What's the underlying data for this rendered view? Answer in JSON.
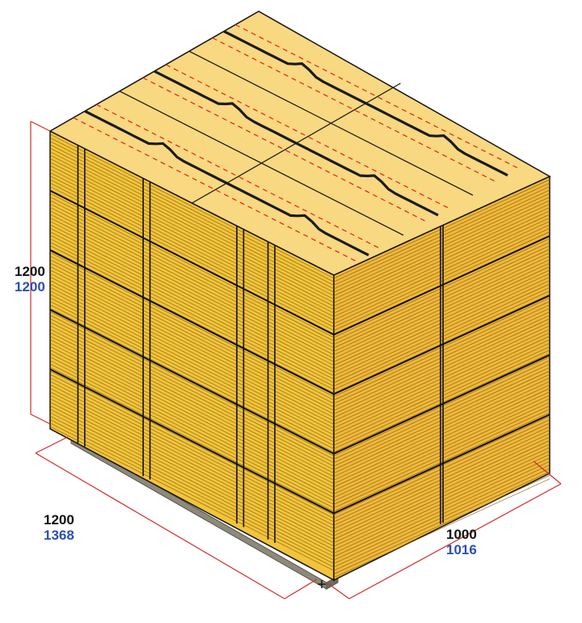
{
  "colors": {
    "box_top": "#f8d880",
    "box_front": "#f2c43a",
    "box_side": "#f0b83a",
    "carton_lines": "#111111",
    "cut_lines": "#e0201a",
    "dimension_lines": "#d42a2a",
    "pallet_base": "#8d8a7c",
    "nominal_text": "#111111",
    "actual_text": "#2a4fb0"
  },
  "dimensions": {
    "height": {
      "nominal": "1200",
      "actual": "1200"
    },
    "length": {
      "nominal": "1200",
      "actual": "1368"
    },
    "width": {
      "nominal": "1000",
      "actual": "1016"
    }
  },
  "load": {
    "layers": 5,
    "top_grid": "3 x 2",
    "front_columns": 3,
    "side_columns": 2
  }
}
